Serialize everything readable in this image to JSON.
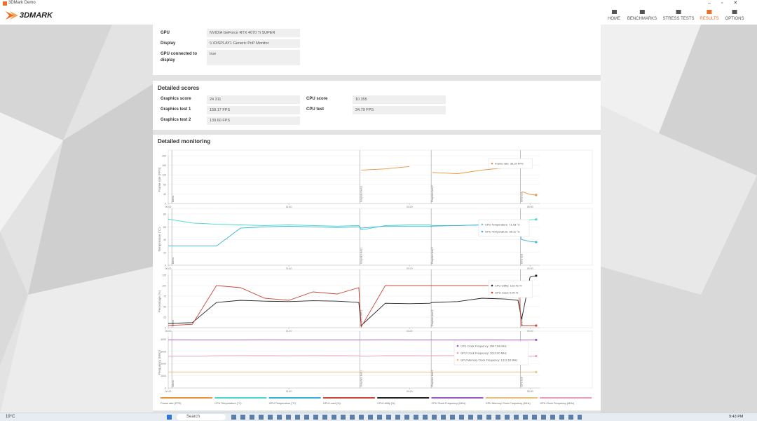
{
  "window": {
    "title": "3DMark Demo"
  },
  "header": {
    "logo": "3DMARK",
    "nav": [
      "HOME",
      "BENCHMARKS",
      "STRESS TESTS",
      "RESULTS",
      "OPTIONS"
    ],
    "active": 3
  },
  "system_info": {
    "rows": [
      [
        "GPU",
        "NVIDIA GeForce RTX 4070 Ti SUPER"
      ],
      [
        "Display",
        "\\\\.\\DISPLAY1 Generic PnP Monitor"
      ],
      [
        "GPU connected to display",
        "true"
      ]
    ]
  },
  "detailed_scores": {
    "title": "Detailed scores",
    "left": [
      [
        "Graphics score",
        "24 311"
      ],
      [
        "Graphics test 1",
        "158.17 FPS"
      ],
      [
        "Graphics test 2",
        "139.60 FPS"
      ]
    ],
    "right": [
      [
        "CPU score",
        "10 355"
      ],
      [
        "CPU test",
        "34.79 FPS"
      ]
    ]
  },
  "detailed_monitoring": {
    "title": "Detailed monitoring",
    "legend": [
      {
        "name": "Frame rate (FPS)",
        "color": "#e8923a"
      },
      {
        "name": "CPU Temperature (°C)",
        "color": "#45d6cc"
      },
      {
        "name": "GPU Temperature (°C)",
        "color": "#38b2dc"
      },
      {
        "name": "GPU Load (%)",
        "color": "#c8473a"
      },
      {
        "name": "CPU Utility (%)",
        "color": "#222222"
      },
      {
        "name": "CPU Clock Frequency (MHz)",
        "color": "#9b5bc0"
      },
      {
        "name": "GPU Memory Clock Frequency (MHz)",
        "color": "#e8c07a"
      },
      {
        "name": "GPU Clock Frequency (MHz)",
        "color": "#ea9abb"
      }
    ]
  },
  "chart_data": [
    {
      "type": "line",
      "y_label": "Frame rate (FPS)",
      "x": [
        0,
        20,
        40,
        60,
        80,
        100,
        120,
        140,
        158,
        160,
        180,
        200,
        217,
        219,
        240,
        260,
        280,
        290,
        293,
        300,
        305
      ],
      "xlim": [
        0,
        308
      ],
      "xticks": [
        {
          "value": 0,
          "label": "00:00"
        },
        {
          "value": 100,
          "label": "01:40"
        },
        {
          "value": 200,
          "label": "03:20"
        },
        {
          "value": 300,
          "label": "05:00"
        }
      ],
      "ylim": [
        0,
        200
      ],
      "yticks": [
        0,
        40,
        80,
        120,
        160,
        200
      ],
      "annotations": [
        {
          "x": 3,
          "label": "Demo"
        },
        {
          "x": 159,
          "label": "Graphics test 1"
        },
        {
          "x": 218,
          "label": "Graphics test 2"
        },
        {
          "x": 292,
          "label": "CPU test"
        }
      ],
      "series": [
        {
          "name": "Frame rate",
          "color": "#e8923a",
          "values": [
            null,
            null,
            null,
            null,
            null,
            null,
            null,
            null,
            null,
            140,
            145,
            155,
            null,
            130,
            125,
            140,
            150,
            null,
            50,
            38,
            35.2
          ]
        }
      ],
      "tooltip": [
        "Frame rate: 35.20 FPS"
      ]
    },
    {
      "type": "line",
      "y_label": "Temperature (°C)",
      "x": [
        0,
        20,
        40,
        60,
        80,
        100,
        120,
        140,
        158,
        160,
        180,
        200,
        217,
        219,
        240,
        260,
        280,
        290,
        293,
        300,
        305
      ],
      "xlim": [
        0,
        308
      ],
      "xticks": [
        {
          "value": 0,
          "label": "00:00"
        },
        {
          "value": 100,
          "label": "01:40"
        },
        {
          "value": 200,
          "label": "03:20"
        },
        {
          "value": 300,
          "label": "05:00"
        }
      ],
      "ylim": [
        0,
        80
      ],
      "yticks": [
        0,
        20,
        40,
        60,
        80
      ],
      "annotations": [
        {
          "x": 3,
          "label": "Demo"
        },
        {
          "x": 159,
          "label": "Graphics test 1"
        },
        {
          "x": 218,
          "label": "Graphics test 2"
        },
        {
          "x": 292,
          "label": "CPU test"
        }
      ],
      "series": [
        {
          "name": "CPU Temperature",
          "color": "#45d6cc",
          "values": [
            72,
            66,
            64,
            63,
            62,
            63,
            62,
            61,
            62,
            55,
            62,
            63,
            63,
            62,
            62,
            63,
            64,
            66,
            70,
            71,
            71.53
          ]
        },
        {
          "name": "GPU Temperature",
          "color": "#38b2dc",
          "values": [
            30,
            30,
            30,
            58,
            60,
            61,
            60,
            59,
            60,
            58,
            61,
            61,
            61,
            61,
            62,
            63,
            62,
            60,
            40,
            37,
            36.11
          ]
        }
      ],
      "tooltip": [
        "CPU Temperature: 71.53 °C",
        "GPU Temperature: 36.11 °C"
      ]
    },
    {
      "type": "line",
      "y_label": "Percentage (%)",
      "x": [
        0,
        20,
        40,
        60,
        80,
        100,
        120,
        140,
        158,
        160,
        180,
        200,
        217,
        219,
        240,
        260,
        280,
        290,
        293,
        300,
        305
      ],
      "xlim": [
        0,
        308
      ],
      "xticks": [
        {
          "value": 0,
          "label": "00:00"
        },
        {
          "value": 100,
          "label": "01:40"
        },
        {
          "value": 200,
          "label": "03:20"
        },
        {
          "value": 300,
          "label": "05:00"
        }
      ],
      "ylim": [
        0,
        125
      ],
      "yticks": [
        0,
        25,
        50,
        75,
        100,
        125
      ],
      "annotations": [
        {
          "x": 3,
          "label": "Demo"
        },
        {
          "x": 159,
          "label": "Graphics test 1"
        },
        {
          "x": 218,
          "label": "Graphics test 2"
        },
        {
          "x": 292,
          "label": "CPU test"
        }
      ],
      "series": [
        {
          "name": "CPU Utility",
          "color": "#222222",
          "values": [
            10,
            12,
            60,
            65,
            63,
            62,
            64,
            63,
            60,
            5,
            58,
            57,
            58,
            60,
            62,
            70,
            68,
            65,
            20,
            120,
            123.42
          ]
        },
        {
          "name": "GPU Load",
          "color": "#c8473a",
          "values": [
            5,
            8,
            100,
            95,
            70,
            65,
            85,
            80,
            95,
            2,
            100,
            100,
            100,
            100,
            100,
            100,
            100,
            100,
            5,
            5,
            5
          ]
        }
      ],
      "tooltip": [
        "CPU Utility: 123.42 %",
        "GPU Load: 5.00 %"
      ]
    },
    {
      "type": "line",
      "y_label": "Frequency (MHz)",
      "x": [
        0,
        20,
        40,
        60,
        80,
        100,
        120,
        140,
        158,
        160,
        180,
        200,
        217,
        219,
        240,
        260,
        280,
        290,
        293,
        300,
        305
      ],
      "xlim": [
        0,
        308
      ],
      "xticks": [
        {
          "value": 0,
          "label": "00:00"
        },
        {
          "value": 100,
          "label": "01:40"
        },
        {
          "value": 200,
          "label": "03:20"
        },
        {
          "value": 300,
          "label": "05:00"
        }
      ],
      "ylim": [
        0,
        4200
      ],
      "yticks": [
        0,
        1000,
        2000,
        3000,
        4000
      ],
      "annotations": [
        {
          "x": 3,
          "label": "Demo"
        },
        {
          "x": 159,
          "label": "Graphics test 1"
        },
        {
          "x": 218,
          "label": "Graphics test 2"
        },
        {
          "x": 292,
          "label": "CPU test"
        }
      ],
      "series": [
        {
          "name": "CPU Clock Frequency",
          "color": "#9b5bc0",
          "values": [
            3950,
            3948,
            3947,
            3949,
            3950,
            3948,
            3947,
            3949,
            3948,
            3946,
            3950,
            3948,
            3947,
            3948,
            3949,
            3950,
            3948,
            3947,
            3946,
            3948,
            3947.94
          ]
        },
        {
          "name": "GPU Clock Frequency",
          "color": "#ea9abb",
          "values": [
            2610,
            2612,
            2640,
            2650,
            2645,
            2640,
            2650,
            2648,
            2640,
            2610,
            2650,
            2645,
            2640,
            2645,
            2650,
            2648,
            2645,
            2640,
            2610,
            2610,
            2610
          ]
        },
        {
          "name": "GPU Memory Clock Frequency",
          "color": "#e8c07a",
          "values": [
            1312.63,
            1312.63,
            1312.63,
            1312.63,
            1312.63,
            1312.63,
            1312.63,
            1312.63,
            1312.63,
            1312.63,
            1312.63,
            1312.63,
            1312.63,
            1312.63,
            1312.63,
            1312.63,
            1312.63,
            1312.63,
            1312.63,
            1312.63,
            1312.63
          ]
        }
      ],
      "tooltip": [
        "CPU Clock Frequency: 3947.94 MHz",
        "GPU Clock Frequency: 2610.00 MHz",
        "GPU Memory Clock Frequency: 1312.63 MHz"
      ]
    }
  ],
  "taskbar": {
    "weather": "19°C",
    "search": "Search",
    "time": "9:43 PM"
  }
}
